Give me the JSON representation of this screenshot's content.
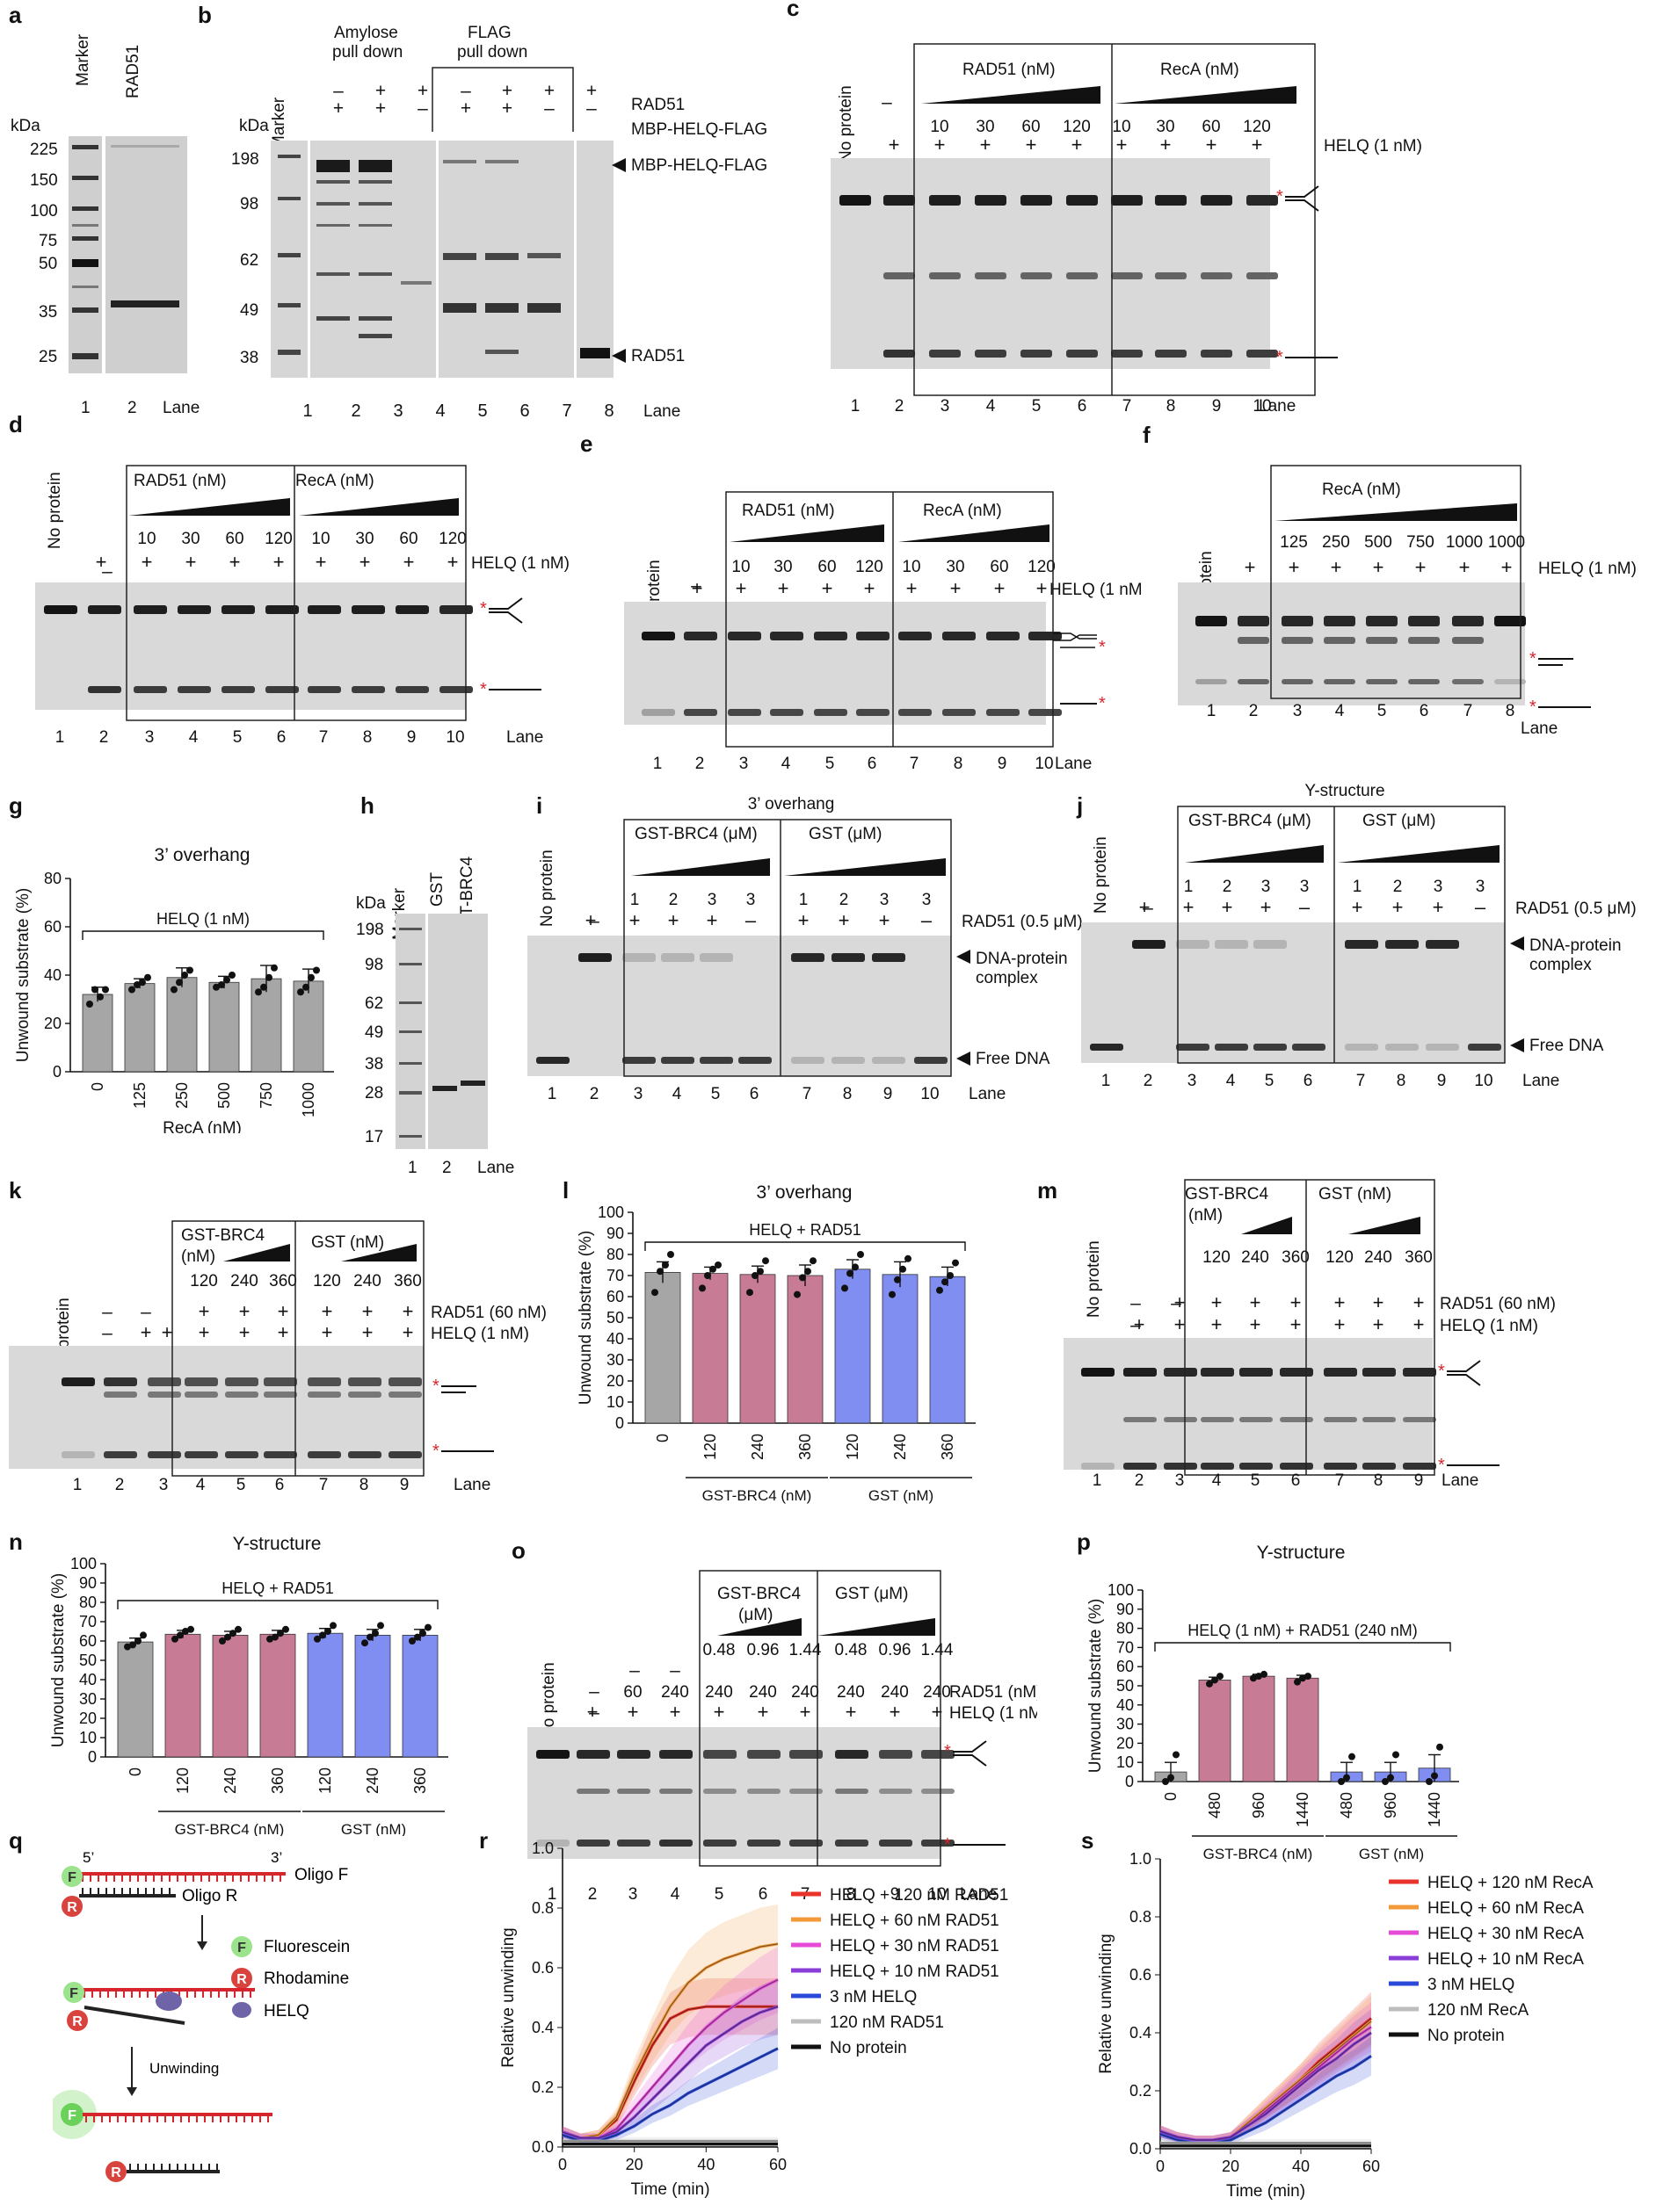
{
  "figure": {
    "panel_letters": [
      "a",
      "b",
      "c",
      "d",
      "e",
      "f",
      "g",
      "h",
      "i",
      "j",
      "k",
      "l",
      "m",
      "n",
      "o",
      "p",
      "q",
      "r",
      "s"
    ],
    "common": {
      "lane": "Lane",
      "no_protein": "No protein",
      "plus": "+",
      "minus": "–",
      "helq_1nm": "HELQ (1 nM)",
      "rad51_nm": "RAD51 (nM)",
      "reca_nm": "RecA (nM)",
      "kda": "kDa",
      "marker": "Marker",
      "dna_protein_complex_1": "DNA-protein",
      "dna_protein_complex_2": "complex",
      "free_dna": "Free DNA",
      "rad51_05um": "RAD51 (0.5 μM)",
      "rad51_60nm": "RAD51 (60 nM)",
      "gst_brc4_um": "GST-BRC4 (μM)",
      "gst_um": "GST (μM)",
      "gst_brc4_nm_1": "GST-BRC4",
      "gst_brc4_nm_2": "(nM)",
      "gst_nm": "GST (nM)",
      "gst_brc4_um_1": "GST-BRC4",
      "gst_brc4_um_2": "(μM)",
      "rad51_nm_label": "RAD51 (nM)",
      "helq_rad51": "HELQ + RAD51",
      "unwound_substrate": "Unwound substrate (%)",
      "three_prime_overhang": "3’ overhang",
      "y_structure": "Y-structure",
      "gst_brc4_nm_axis": "GST-BRC4 (nM)",
      "gst_nm_axis": "GST (nM)",
      "reca_nm_axis": "RecA (nM)",
      "conc_4": [
        "10",
        "30",
        "60",
        "120"
      ],
      "conc_f": [
        "125",
        "250",
        "500",
        "750",
        "1000",
        "1000"
      ],
      "lanes10": [
        "1",
        "2",
        "3",
        "4",
        "5",
        "6",
        "7",
        "8",
        "9",
        "10"
      ],
      "lanes8": [
        "1",
        "2",
        "3",
        "4",
        "5",
        "6",
        "7",
        "8"
      ],
      "lanes9": [
        "1",
        "2",
        "3",
        "4",
        "5",
        "6",
        "7",
        "8",
        "9"
      ],
      "conc_123": [
        "1",
        "2",
        "3",
        "3"
      ],
      "conc_kn": [
        "120",
        "240",
        "360"
      ],
      "conc_o_brc": [
        "0.48",
        "0.96",
        "1.44"
      ]
    },
    "panel_a": {
      "lane_labels": [
        "Marker",
        "RAD51"
      ],
      "kda_ticks": [
        "225",
        "150",
        "100",
        "75",
        "50",
        "35",
        "25"
      ],
      "lanes": [
        "1",
        "2"
      ]
    },
    "panel_b": {
      "amylose_1": "Amylose",
      "amylose_2": "pull down",
      "flag_1": "FLAG",
      "flag_2": "pull down",
      "rad51": "RAD51",
      "mbp_helq_flag": "MBP-HELQ-FLAG",
      "kda_ticks": [
        "198",
        "98",
        "62",
        "49",
        "38"
      ],
      "row_rad51": [
        "–",
        "+",
        "+",
        "–",
        "+",
        "+",
        "+"
      ],
      "row_mbp": [
        "+",
        "+",
        "–",
        "+",
        "+",
        "–",
        "–"
      ],
      "band_mbp": "MBP-HELQ-FLAG",
      "band_rad51": "RAD51",
      "lanes": [
        "1",
        "2",
        "3",
        "4",
        "5",
        "6",
        "7",
        "8"
      ]
    },
    "panel_g": {
      "title": "3’ overhang",
      "bracket": "HELQ (1 nM)",
      "x_label": "RecA (nM)"
    },
    "panel_h": {
      "lane_labels": [
        "Marker",
        "GST",
        "GST-BRC4"
      ],
      "kda_ticks": [
        "198",
        "98",
        "62",
        "49",
        "38",
        "28",
        "17"
      ],
      "lanes": [
        "1",
        "2"
      ]
    },
    "panel_l": {
      "title": "3’ overhang",
      "bracket": "HELQ + RAD51"
    },
    "panel_n": {
      "title": "Y-structure",
      "bracket": "HELQ + RAD51"
    },
    "panel_p": {
      "title": "Y-structure",
      "bracket": "HELQ (1 nM) + RAD51 (240 nM)"
    },
    "panel_q": {
      "five_prime": "5’",
      "three_prime": "3’",
      "oligo_f": "Oligo F",
      "oligo_r": "Oligo R",
      "fluorescein": "Fluorescein",
      "rhodamine": "Rhodamine",
      "helq": "HELQ",
      "unwinding": "Unwinding",
      "f": "F",
      "r": "R"
    }
  },
  "chart_data": [
    {
      "id": "g",
      "type": "bar",
      "title": "3’ overhang",
      "categories": [
        "0",
        "125",
        "250",
        "500",
        "750",
        "1000"
      ],
      "values": [
        32,
        36.5,
        39,
        37,
        38.5,
        37.5
      ],
      "errors": [
        3,
        2,
        4,
        2.5,
        5.5,
        5
      ],
      "points": [
        [
          28,
          34,
          31,
          34
        ],
        [
          34,
          36,
          37,
          39
        ],
        [
          34,
          37,
          40,
          42
        ],
        [
          35,
          36,
          38,
          40
        ],
        [
          33,
          35,
          39,
          43
        ],
        [
          33,
          35,
          39,
          42
        ]
      ],
      "colors": [
        "#a6a6a6",
        "#a6a6a6",
        "#a6a6a6",
        "#a6a6a6",
        "#a6a6a6",
        "#a6a6a6"
      ],
      "xlabel": "RecA (nM)",
      "ylabel": "Unwound substrate (%)",
      "ylim": [
        0,
        80
      ],
      "yticks": [
        "0",
        "20",
        "40",
        "60",
        "80"
      ]
    },
    {
      "id": "l",
      "type": "bar",
      "title": "3’ overhang",
      "categories": [
        "0",
        "120",
        "240",
        "360",
        "120",
        "240",
        "360"
      ],
      "values": [
        71.5,
        71,
        70.5,
        70,
        73,
        70.5,
        69.5
      ],
      "errors": [
        5,
        3,
        4,
        5,
        4.5,
        6,
        4.5
      ],
      "points": [
        [
          62,
          72,
          75,
          80
        ],
        [
          64,
          70,
          73,
          75
        ],
        [
          62,
          70,
          72,
          77
        ],
        [
          61,
          69,
          72,
          77
        ],
        [
          64,
          71,
          74,
          80
        ],
        [
          61,
          68,
          73,
          78
        ],
        [
          63,
          67,
          70,
          76
        ]
      ],
      "colors": [
        "#a6a6a6",
        "#c87b95",
        "#c87b95",
        "#c87b95",
        "#7f8ef0",
        "#7f8ef0",
        "#7f8ef0"
      ],
      "groups": [
        "GST-BRC4 (nM)",
        "GST (nM)"
      ],
      "ylabel": "Unwound substrate (%)",
      "ylim": [
        0,
        100
      ],
      "yticks": [
        "0",
        "10",
        "20",
        "30",
        "40",
        "50",
        "60",
        "70",
        "80",
        "90",
        "100"
      ]
    },
    {
      "id": "n",
      "type": "bar",
      "title": "Y-structure",
      "categories": [
        "0",
        "120",
        "240",
        "360",
        "120",
        "240",
        "360"
      ],
      "values": [
        59.5,
        63.5,
        63,
        63.5,
        64,
        63,
        63
      ],
      "errors": [
        2,
        2,
        2,
        2,
        2.5,
        3,
        3
      ],
      "points": [
        [
          57,
          58,
          60,
          63
        ],
        [
          61,
          63,
          65,
          66
        ],
        [
          60,
          62,
          64,
          66
        ],
        [
          61,
          62,
          64,
          66
        ],
        [
          61,
          63,
          65,
          68
        ],
        [
          59,
          62,
          64,
          68
        ],
        [
          60,
          62,
          64,
          67
        ]
      ],
      "colors": [
        "#a6a6a6",
        "#c87b95",
        "#c87b95",
        "#c87b95",
        "#7f8ef0",
        "#7f8ef0",
        "#7f8ef0"
      ],
      "groups": [
        "GST-BRC4 (nM)",
        "GST (nM)"
      ],
      "ylabel": "Unwound substrate (%)",
      "ylim": [
        0,
        100
      ],
      "yticks": [
        "0",
        "10",
        "20",
        "30",
        "40",
        "50",
        "60",
        "70",
        "80",
        "90",
        "100"
      ]
    },
    {
      "id": "p",
      "type": "bar",
      "title": "Y-structure",
      "categories": [
        "0",
        "480",
        "960",
        "1440",
        "480",
        "960",
        "1440"
      ],
      "values": [
        5,
        53,
        55,
        54,
        5,
        5,
        7
      ],
      "errors": [
        5,
        1.5,
        1,
        1.5,
        5,
        5,
        7
      ],
      "points": [
        [
          0,
          2,
          14
        ],
        [
          51,
          53,
          55
        ],
        [
          54,
          55,
          56
        ],
        [
          52,
          54,
          55
        ],
        [
          0,
          2,
          13
        ],
        [
          0,
          2,
          14
        ],
        [
          0,
          3,
          18
        ]
      ],
      "colors": [
        "#a6a6a6",
        "#c87b95",
        "#c87b95",
        "#c87b95",
        "#7f8ef0",
        "#7f8ef0",
        "#7f8ef0"
      ],
      "groups": [
        "GST-BRC4 (nM)",
        "GST (nM)"
      ],
      "ylabel": "Unwound substrate (%)",
      "ylim": [
        0,
        100
      ],
      "yticks": [
        "0",
        "10",
        "20",
        "30",
        "40",
        "50",
        "60",
        "70",
        "80",
        "90",
        "100"
      ]
    },
    {
      "id": "r",
      "type": "line",
      "xlabel": "Time (min)",
      "ylabel": "Relative unwinding",
      "xlim": [
        0,
        60
      ],
      "ylim": [
        0,
        1.0
      ],
      "xticks": [
        "0",
        "20",
        "40",
        "60"
      ],
      "yticks": [
        "0.0",
        "0.2",
        "0.4",
        "0.6",
        "0.8",
        "1.0"
      ],
      "x": [
        0,
        5,
        10,
        15,
        20,
        25,
        30,
        35,
        40,
        45,
        50,
        55,
        60
      ],
      "series": [
        {
          "name": "HELQ + 120 nM RAD51",
          "color": "#e8322a",
          "values": [
            0.05,
            0.03,
            0.04,
            0.09,
            0.22,
            0.34,
            0.43,
            0.46,
            0.47,
            0.47,
            0.47,
            0.47,
            0.47
          ]
        },
        {
          "name": "HELQ + 60 nM RAD51",
          "color": "#f29a3a",
          "values": [
            0.05,
            0.03,
            0.04,
            0.1,
            0.24,
            0.36,
            0.47,
            0.55,
            0.6,
            0.63,
            0.65,
            0.67,
            0.68
          ]
        },
        {
          "name": "HELQ + 30 nM RAD51",
          "color": "#e64bd8",
          "values": [
            0.05,
            0.03,
            0.03,
            0.06,
            0.13,
            0.2,
            0.27,
            0.34,
            0.4,
            0.45,
            0.49,
            0.53,
            0.56
          ]
        },
        {
          "name": "HELQ + 10 nM RAD51",
          "color": "#8a3ed6",
          "values": [
            0.05,
            0.03,
            0.03,
            0.05,
            0.1,
            0.16,
            0.22,
            0.28,
            0.34,
            0.38,
            0.42,
            0.45,
            0.47
          ]
        },
        {
          "name": "3 nM HELQ",
          "color": "#2b49d8",
          "values": [
            0.04,
            0.02,
            0.02,
            0.04,
            0.07,
            0.11,
            0.14,
            0.18,
            0.21,
            0.24,
            0.27,
            0.3,
            0.33
          ]
        },
        {
          "name": "120 nM RAD51",
          "color": "#bdbdbd",
          "values": [
            0.02,
            0.02,
            0.02,
            0.02,
            0.02,
            0.02,
            0.02,
            0.02,
            0.02,
            0.02,
            0.02,
            0.02,
            0.02
          ]
        },
        {
          "name": "No protein",
          "color": "#111111",
          "values": [
            0.01,
            0.01,
            0.01,
            0.01,
            0.01,
            0.01,
            0.01,
            0.01,
            0.01,
            0.01,
            0.01,
            0.01,
            0.01
          ]
        }
      ]
    },
    {
      "id": "s",
      "type": "line",
      "xlabel": "Time (min)",
      "ylabel": "Relative unwinding",
      "xlim": [
        0,
        60
      ],
      "ylim": [
        0,
        1.0
      ],
      "xticks": [
        "0",
        "20",
        "40",
        "60"
      ],
      "yticks": [
        "0.0",
        "0.2",
        "0.4",
        "0.6",
        "0.8",
        "1.0"
      ],
      "x": [
        0,
        5,
        10,
        15,
        20,
        25,
        30,
        35,
        40,
        45,
        50,
        55,
        60
      ],
      "series": [
        {
          "name": "HELQ + 120 nM RecA",
          "color": "#e8322a",
          "values": [
            0.06,
            0.04,
            0.03,
            0.03,
            0.04,
            0.09,
            0.14,
            0.19,
            0.24,
            0.3,
            0.35,
            0.4,
            0.45
          ]
        },
        {
          "name": "HELQ + 60 nM RecA",
          "color": "#f29a3a",
          "values": [
            0.06,
            0.04,
            0.03,
            0.03,
            0.04,
            0.09,
            0.14,
            0.19,
            0.24,
            0.29,
            0.34,
            0.39,
            0.44
          ]
        },
        {
          "name": "HELQ + 30 nM RecA",
          "color": "#e64bd8",
          "values": [
            0.06,
            0.04,
            0.03,
            0.03,
            0.04,
            0.08,
            0.13,
            0.18,
            0.23,
            0.28,
            0.33,
            0.38,
            0.42
          ]
        },
        {
          "name": "HELQ + 10 nM RecA",
          "color": "#8a3ed6",
          "values": [
            0.06,
            0.04,
            0.03,
            0.03,
            0.04,
            0.08,
            0.12,
            0.17,
            0.22,
            0.27,
            0.31,
            0.36,
            0.4
          ]
        },
        {
          "name": "3 nM HELQ",
          "color": "#2b49d8",
          "values": [
            0.05,
            0.03,
            0.02,
            0.02,
            0.03,
            0.06,
            0.09,
            0.13,
            0.17,
            0.21,
            0.25,
            0.28,
            0.32
          ]
        },
        {
          "name": "120 nM RecA",
          "color": "#bdbdbd",
          "values": [
            0.02,
            0.02,
            0.02,
            0.02,
            0.02,
            0.02,
            0.02,
            0.02,
            0.02,
            0.02,
            0.02,
            0.02,
            0.02
          ]
        },
        {
          "name": "No protein",
          "color": "#111111",
          "values": [
            0.01,
            0.01,
            0.01,
            0.01,
            0.01,
            0.01,
            0.01,
            0.01,
            0.01,
            0.01,
            0.01,
            0.01,
            0.01
          ]
        }
      ]
    }
  ]
}
